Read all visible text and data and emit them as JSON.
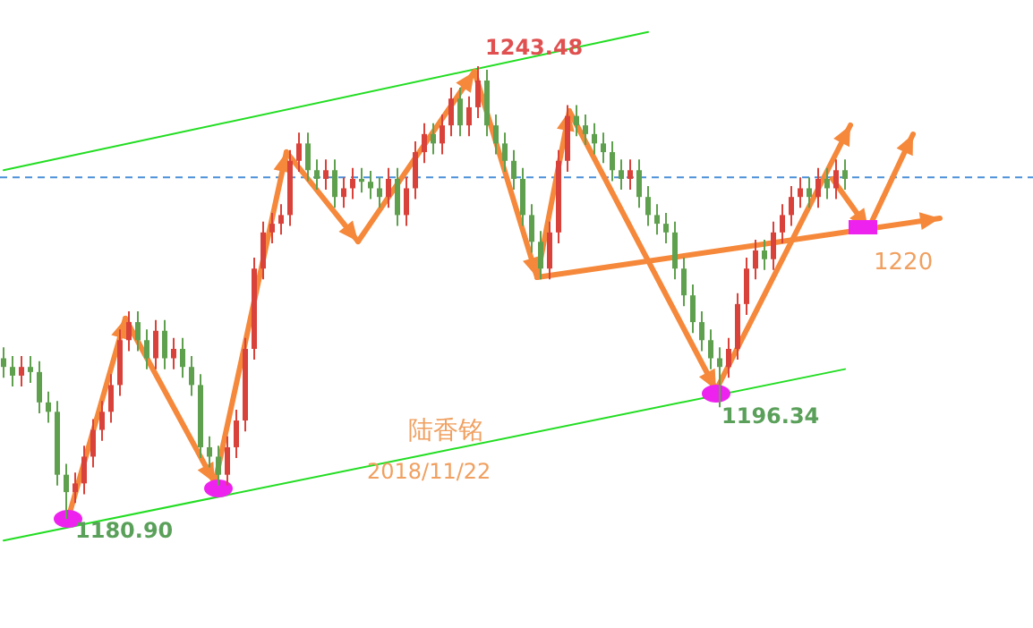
{
  "chart_data": {
    "type": "candlestick",
    "categories": [
      null,
      null,
      null,
      null,
      null,
      null,
      null,
      null,
      null,
      null,
      null,
      null,
      null,
      null,
      null,
      null,
      null,
      null,
      null,
      null,
      null,
      null,
      null,
      null,
      null,
      null,
      null,
      null,
      null,
      null,
      null,
      null,
      null,
      null,
      null,
      null,
      null,
      null,
      null,
      null,
      null,
      null,
      null,
      null,
      null,
      null,
      null,
      null,
      null,
      null,
      null,
      null,
      null,
      null,
      null,
      null,
      null,
      null,
      null,
      null,
      null,
      null,
      null,
      null,
      null,
      null,
      null,
      null,
      null,
      null,
      null,
      null,
      null,
      null,
      null,
      null,
      null,
      null,
      null,
      null,
      null,
      null,
      null,
      null,
      null,
      null,
      null,
      null,
      null,
      null,
      null,
      null,
      null,
      null,
      null
    ],
    "tick_labels": false,
    "colors": [
      "#5fa04e",
      "#5fa04e",
      "#d9423a",
      "#5fa04e",
      "#5fa04e",
      "#5fa04e",
      "#5fa04e",
      "#5fa04e",
      "#d9423a",
      "#d9423a",
      "#d9423a",
      "#d9423a",
      "#d9423a",
      "#d9423a",
      "#d9423a",
      "#5fa04e",
      "#5fa04e",
      "#d9423a",
      "#5fa04e",
      "#d9423a",
      "#5fa04e",
      "#5fa04e",
      "#5fa04e",
      "#5fa04e",
      "#5fa04e",
      "#d9423a",
      "#d9423a",
      "#d9423a",
      "#d9423a",
      "#d9423a",
      "#d9423a",
      "#d9423a",
      "#d9423a",
      "#d9423a",
      "#5fa04e",
      "#5fa04e",
      "#d9423a",
      "#5fa04e",
      "#d9423a",
      "#d9423a",
      "#5fa04e",
      "#5fa04e",
      "#5fa04e",
      "#d9423a",
      "#5fa04e",
      "#d9423a",
      "#d9423a",
      "#d9423a",
      "#5fa04e",
      "#d9423a",
      "#d9423a",
      "#5fa04e",
      "#d9423a",
      "#d9423a",
      "#5fa04e",
      "#5fa04e",
      "#5fa04e",
      "#5fa04e",
      "#5fa04e",
      "#5fa04e",
      "#5fa04e",
      "#d9423a",
      "#d9423a",
      "#d9423a",
      "#5fa04e",
      "#5fa04e",
      "#5fa04e",
      "#5fa04e",
      "#5fa04e",
      "#5fa04e",
      "#d9423a",
      "#5fa04e",
      "#5fa04e",
      "#5fa04e",
      "#5fa04e",
      "#5fa04e",
      "#5fa04e",
      "#5fa04e",
      "#5fa04e",
      "#5fa04e",
      "#5fa04e",
      "#d9423a",
      "#d9423a",
      "#d9423a",
      "#d9423a",
      "#5fa04e",
      "#d9423a",
      "#d9423a",
      "#d9423a",
      "#d9423a",
      "#5fa04e",
      "#d9423a",
      "#5fa04e",
      "#d9423a",
      "#5fa04e"
    ],
    "ohlc": [
      [
        1203.1,
        1204.6,
        1200.4,
        1201.9
      ],
      [
        1201.9,
        1203.4,
        1199.2,
        1200.7
      ],
      [
        1200.7,
        1203.4,
        1199.2,
        1201.9
      ],
      [
        1201.9,
        1203.4,
        1199.7,
        1201.2
      ],
      [
        1201.2,
        1202.7,
        1195.5,
        1197.0
      ],
      [
        1197.0,
        1198.5,
        1194.2,
        1195.7
      ],
      [
        1195.7,
        1197.2,
        1185.5,
        1187.0
      ],
      [
        1187.0,
        1188.5,
        1180.9,
        1184.6
      ],
      [
        1184.6,
        1187.3,
        1183.1,
        1185.8
      ],
      [
        1185.8,
        1191.0,
        1184.3,
        1189.5
      ],
      [
        1189.5,
        1194.7,
        1188.0,
        1193.2
      ],
      [
        1193.2,
        1197.2,
        1191.7,
        1195.7
      ],
      [
        1195.7,
        1200.9,
        1194.2,
        1199.4
      ],
      [
        1199.4,
        1207.1,
        1197.9,
        1205.6
      ],
      [
        1205.6,
        1209.6,
        1204.1,
        1208.1
      ],
      [
        1208.1,
        1209.6,
        1204.1,
        1205.6
      ],
      [
        1205.6,
        1207.1,
        1201.6,
        1203.1
      ],
      [
        1203.1,
        1208.4,
        1201.6,
        1206.9
      ],
      [
        1206.9,
        1208.4,
        1201.6,
        1203.1
      ],
      [
        1203.1,
        1205.9,
        1201.6,
        1204.4
      ],
      [
        1204.4,
        1205.9,
        1200.4,
        1201.9
      ],
      [
        1201.9,
        1203.4,
        1197.9,
        1199.4
      ],
      [
        1199.4,
        1200.9,
        1189.3,
        1190.8
      ],
      [
        1190.8,
        1192.3,
        1188.0,
        1189.5
      ],
      [
        1189.5,
        1191.0,
        1185.5,
        1187.0
      ],
      [
        1187.0,
        1192.3,
        1185.5,
        1190.8
      ],
      [
        1190.8,
        1196.0,
        1189.3,
        1194.5
      ],
      [
        1194.5,
        1205.9,
        1193.0,
        1204.4
      ],
      [
        1204.4,
        1217.0,
        1202.9,
        1215.5
      ],
      [
        1215.5,
        1222.0,
        1214.0,
        1220.5
      ],
      [
        1220.5,
        1223.2,
        1219.0,
        1221.7
      ],
      [
        1221.7,
        1224.4,
        1220.2,
        1222.9
      ],
      [
        1222.9,
        1231.9,
        1221.4,
        1230.4
      ],
      [
        1230.4,
        1234.3,
        1228.9,
        1232.8
      ],
      [
        1232.8,
        1234.3,
        1227.6,
        1229.1
      ],
      [
        1229.1,
        1230.6,
        1226.4,
        1227.9
      ],
      [
        1227.9,
        1230.6,
        1226.4,
        1229.1
      ],
      [
        1229.1,
        1230.6,
        1223.9,
        1225.4
      ],
      [
        1225.4,
        1228.1,
        1223.9,
        1226.6
      ],
      [
        1226.6,
        1229.4,
        1225.1,
        1227.9
      ],
      [
        1227.9,
        1229.4,
        1226.0,
        1227.5
      ],
      [
        1227.5,
        1229.0,
        1225.1,
        1226.6
      ],
      [
        1226.6,
        1228.1,
        1223.9,
        1225.4
      ],
      [
        1225.4,
        1229.4,
        1223.9,
        1227.9
      ],
      [
        1227.9,
        1229.4,
        1221.4,
        1222.9
      ],
      [
        1222.9,
        1228.1,
        1221.4,
        1226.6
      ],
      [
        1226.6,
        1233.1,
        1225.1,
        1231.6
      ],
      [
        1231.6,
        1235.6,
        1230.1,
        1234.1
      ],
      [
        1234.1,
        1235.6,
        1231.3,
        1232.8
      ],
      [
        1232.8,
        1236.8,
        1231.3,
        1235.3
      ],
      [
        1235.3,
        1240.5,
        1233.8,
        1239.0
      ],
      [
        1239.0,
        1240.5,
        1233.8,
        1235.3
      ],
      [
        1235.3,
        1239.3,
        1233.8,
        1237.8
      ],
      [
        1237.8,
        1243.48,
        1236.3,
        1241.5
      ],
      [
        1241.5,
        1243.0,
        1233.8,
        1235.3
      ],
      [
        1235.3,
        1236.8,
        1231.3,
        1232.8
      ],
      [
        1232.8,
        1234.3,
        1228.9,
        1230.4
      ],
      [
        1230.4,
        1231.9,
        1226.4,
        1227.9
      ],
      [
        1227.9,
        1229.4,
        1221.4,
        1222.9
      ],
      [
        1222.9,
        1224.4,
        1217.7,
        1219.2
      ],
      [
        1219.2,
        1220.7,
        1214.0,
        1215.5
      ],
      [
        1215.5,
        1222.0,
        1214.0,
        1220.5
      ],
      [
        1220.5,
        1231.9,
        1219.0,
        1230.4
      ],
      [
        1230.4,
        1238.1,
        1228.9,
        1236.6
      ],
      [
        1236.6,
        1238.1,
        1233.8,
        1235.3
      ],
      [
        1235.3,
        1236.8,
        1232.6,
        1234.1
      ],
      [
        1234.1,
        1235.6,
        1231.3,
        1232.8
      ],
      [
        1232.8,
        1234.3,
        1230.1,
        1231.6
      ],
      [
        1231.6,
        1233.1,
        1227.6,
        1229.1
      ],
      [
        1229.1,
        1230.6,
        1226.4,
        1227.9
      ],
      [
        1227.9,
        1230.6,
        1226.4,
        1229.1
      ],
      [
        1229.1,
        1230.6,
        1223.9,
        1225.4
      ],
      [
        1225.4,
        1226.9,
        1221.4,
        1222.9
      ],
      [
        1222.9,
        1224.4,
        1220.2,
        1221.7
      ],
      [
        1221.7,
        1223.2,
        1219.0,
        1220.5
      ],
      [
        1220.5,
        1222.0,
        1214.0,
        1215.5
      ],
      [
        1215.5,
        1217.0,
        1210.3,
        1211.8
      ],
      [
        1211.8,
        1213.3,
        1206.6,
        1208.1
      ],
      [
        1208.1,
        1209.6,
        1204.1,
        1205.6
      ],
      [
        1205.6,
        1207.1,
        1201.6,
        1203.1
      ],
      [
        1203.1,
        1204.6,
        1196.34,
        1201.9
      ],
      [
        1201.9,
        1205.9,
        1200.4,
        1204.4
      ],
      [
        1204.4,
        1212.1,
        1202.9,
        1210.6
      ],
      [
        1210.6,
        1217.0,
        1209.1,
        1215.5
      ],
      [
        1215.5,
        1219.5,
        1214.0,
        1218.0
      ],
      [
        1218.0,
        1219.5,
        1215.3,
        1216.8
      ],
      [
        1216.8,
        1222.0,
        1215.3,
        1220.5
      ],
      [
        1220.5,
        1224.4,
        1219.0,
        1222.9
      ],
      [
        1222.9,
        1226.9,
        1221.4,
        1225.4
      ],
      [
        1225.4,
        1228.1,
        1223.9,
        1226.6
      ],
      [
        1226.6,
        1228.1,
        1223.9,
        1225.4
      ],
      [
        1225.4,
        1229.4,
        1223.9,
        1227.9
      ],
      [
        1227.9,
        1229.4,
        1225.1,
        1226.6
      ],
      [
        1226.6,
        1230.6,
        1225.1,
        1229.1
      ],
      [
        1229.1,
        1230.6,
        1226.4,
        1227.9
      ]
    ],
    "series": [
      {
        "type": "line",
        "color": "#22dd22",
        "values": [
          1229.1,
          null,
          null,
          null,
          null,
          null,
          null,
          null,
          null,
          null,
          null,
          null,
          null,
          null,
          null,
          null,
          null,
          null,
          null,
          null,
          null,
          null,
          null,
          null,
          null,
          null,
          null,
          null,
          null,
          null,
          null,
          null,
          null,
          null,
          null,
          null,
          null,
          null,
          null,
          null,
          null,
          null,
          null,
          null,
          null,
          null,
          null,
          null,
          null,
          null,
          null,
          null,
          null,
          null,
          null,
          null,
          null,
          null,
          null,
          null,
          null,
          null,
          null,
          null,
          null,
          null,
          null,
          null,
          null,
          null,
          null,
          null,
          1248.2,
          null,
          null,
          null,
          null,
          null,
          null,
          null,
          null,
          null,
          null,
          null,
          null,
          null,
          null,
          null,
          null,
          null,
          null,
          null,
          null,
          null,
          null
        ]
      },
      {
        "type": "line",
        "color": "#22dd22",
        "values": [
          1177.9,
          null,
          null,
          null,
          null,
          null,
          null,
          null,
          null,
          null,
          null,
          null,
          null,
          null,
          null,
          null,
          null,
          null,
          null,
          null,
          null,
          null,
          null,
          null,
          null,
          null,
          null,
          null,
          null,
          null,
          null,
          null,
          null,
          null,
          null,
          null,
          null,
          null,
          null,
          null,
          null,
          null,
          null,
          null,
          null,
          null,
          null,
          null,
          null,
          null,
          null,
          null,
          null,
          null,
          null,
          null,
          null,
          null,
          null,
          null,
          null,
          null,
          null,
          null,
          null,
          null,
          null,
          null,
          null,
          null,
          null,
          null,
          null,
          null,
          null,
          null,
          null,
          null,
          null,
          null,
          null,
          null,
          null,
          null,
          null,
          null,
          null,
          null,
          null,
          null,
          null,
          null,
          null,
          null,
          1201.6
        ]
      }
    ],
    "ref_lines": [
      {
        "axis": "y",
        "value": 1228.1,
        "color": "#4a90d9",
        "line_style": "dashed"
      }
    ],
    "annotations": [
      "1243.48",
      "1180.90",
      "1196.34",
      "1220",
      "陆香铭",
      "2018/11/22"
    ]
  }
}
